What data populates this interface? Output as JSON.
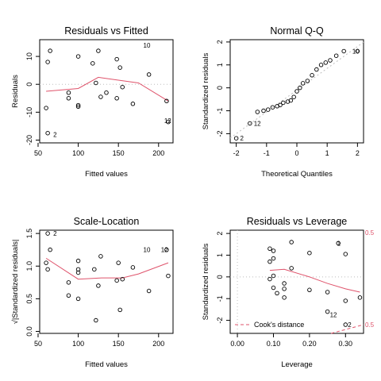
{
  "chart_data": [
    {
      "type": "scatter",
      "title": "Residuals vs Fitted",
      "xlabel": "Fitted values",
      "ylabel": "Residuals",
      "xlim": [
        52,
        218
      ],
      "ylim": [
        -21,
        16
      ],
      "xticks": [
        "50",
        "100",
        "150",
        "200"
      ],
      "xtick_values": [
        50,
        100,
        150,
        200
      ],
      "yticks": [
        "-20",
        "-10",
        "0",
        "10"
      ],
      "ytick_values": [
        -20,
        -10,
        0,
        10
      ],
      "reference_line": 0,
      "points": [
        [
          60,
          -8.5
        ],
        [
          62,
          8
        ],
        [
          65,
          12
        ],
        [
          62,
          -17.5
        ],
        [
          88,
          -3
        ],
        [
          88,
          -5
        ],
        [
          100,
          -7.5
        ],
        [
          100,
          -8
        ],
        [
          100,
          10
        ],
        [
          118,
          7.5
        ],
        [
          122,
          0.5
        ],
        [
          125,
          12
        ],
        [
          128,
          -4.5
        ],
        [
          135,
          -3
        ],
        [
          148,
          9
        ],
        [
          148,
          -5
        ],
        [
          152,
          6
        ],
        [
          155,
          -1
        ],
        [
          168,
          -7
        ],
        [
          188,
          3.5
        ],
        [
          210,
          -6
        ],
        [
          212,
          -13.5
        ]
      ],
      "smooth": [
        [
          60,
          -2.5
        ],
        [
          100,
          -1.5
        ],
        [
          125,
          2.5
        ],
        [
          150,
          1.5
        ],
        [
          175,
          0.5
        ],
        [
          212,
          -6
        ]
      ],
      "labels": [
        {
          "text": "10",
          "x": 178,
          "y": 14
        },
        {
          "text": "12",
          "x": 204,
          "y": -13
        },
        {
          "text": "2",
          "x": 66,
          "y": -18
        }
      ]
    },
    {
      "type": "scatter",
      "title": "Normal Q-Q",
      "xlabel": "Theoretical Quantiles",
      "ylabel": "Standardized residuals",
      "xlim": [
        -2.2,
        2.2
      ],
      "ylim": [
        -2.4,
        2.1
      ],
      "xticks": [
        "-2",
        "-1",
        "0",
        "1",
        "2"
      ],
      "xtick_values": [
        -2,
        -1,
        0,
        1,
        2
      ],
      "yticks": [
        "-2",
        "-1",
        "0",
        "1",
        "2"
      ],
      "ytick_values": [
        -2,
        -1,
        0,
        1,
        2
      ],
      "reference_line": {
        "slope": 0.95,
        "intercept": -0.1
      },
      "points": [
        [
          -2.0,
          -2.2
        ],
        [
          -1.55,
          -1.55
        ],
        [
          -1.3,
          -1.05
        ],
        [
          -1.1,
          -1.0
        ],
        [
          -0.95,
          -0.95
        ],
        [
          -0.8,
          -0.85
        ],
        [
          -0.65,
          -0.8
        ],
        [
          -0.55,
          -0.75
        ],
        [
          -0.45,
          -0.65
        ],
        [
          -0.3,
          -0.6
        ],
        [
          -0.2,
          -0.55
        ],
        [
          -0.1,
          -0.4
        ],
        [
          0.0,
          -0.15
        ],
        [
          0.1,
          0.0
        ],
        [
          0.2,
          0.2
        ],
        [
          0.35,
          0.3
        ],
        [
          0.5,
          0.55
        ],
        [
          0.65,
          0.8
        ],
        [
          0.8,
          1.0
        ],
        [
          0.95,
          1.1
        ],
        [
          1.1,
          1.2
        ],
        [
          1.3,
          1.4
        ],
        [
          1.55,
          1.6
        ],
        [
          2.0,
          1.6
        ]
      ],
      "labels": [
        {
          "text": "2",
          "x": -1.95,
          "y": -2.2
        },
        {
          "text": "12",
          "x": -1.5,
          "y": -1.55
        },
        {
          "text": "10",
          "x": 1.75,
          "y": 1.6
        }
      ]
    },
    {
      "type": "scatter",
      "title": "Scale-Location",
      "xlabel": "Fitted values",
      "ylabel": "√|Standardized residuals|",
      "xlim": [
        52,
        218
      ],
      "ylim": [
        -0.03,
        1.55
      ],
      "xticks": [
        "50",
        "100",
        "150",
        "200"
      ],
      "xtick_values": [
        50,
        100,
        150,
        200
      ],
      "yticks": [
        "0.0",
        "0.5",
        "1.0",
        "1.5"
      ],
      "ytick_values": [
        0.0,
        0.5,
        1.0,
        1.5
      ],
      "points": [
        [
          62,
          1.5
        ],
        [
          60,
          1.05
        ],
        [
          65,
          1.25
        ],
        [
          62,
          0.95
        ],
        [
          88,
          0.75
        ],
        [
          88,
          0.55
        ],
        [
          100,
          1.08
        ],
        [
          100,
          0.95
        ],
        [
          100,
          0.9
        ],
        [
          100,
          0.5
        ],
        [
          120,
          0.95
        ],
        [
          122,
          0.17
        ],
        [
          125,
          0.7
        ],
        [
          128,
          1.15
        ],
        [
          148,
          0.78
        ],
        [
          150,
          1.05
        ],
        [
          152,
          0.33
        ],
        [
          155,
          0.8
        ],
        [
          168,
          0.98
        ],
        [
          188,
          0.62
        ],
        [
          210,
          1.25
        ],
        [
          212,
          0.85
        ]
      ],
      "smooth": [
        [
          60,
          1.12
        ],
        [
          100,
          0.8
        ],
        [
          130,
          0.82
        ],
        [
          155,
          0.82
        ],
        [
          175,
          0.88
        ],
        [
          212,
          1.05
        ]
      ],
      "labels": [
        {
          "text": "2",
          "x": 66,
          "y": 1.5
        },
        {
          "text": "10",
          "x": 178,
          "y": 1.25
        },
        {
          "text": "12",
          "x": 200,
          "y": 1.25
        }
      ]
    },
    {
      "type": "scatter",
      "title": "Residuals vs Leverage",
      "xlabel": "Leverage",
      "ylabel": "Standardized residuals",
      "xlim": [
        -0.02,
        0.35
      ],
      "ylim": [
        -2.6,
        2.15
      ],
      "xticks": [
        "0.00",
        "0.10",
        "0.20",
        "0.30"
      ],
      "xtick_values": [
        0.0,
        0.1,
        0.2,
        0.3
      ],
      "yticks": [
        "-2",
        "-1",
        "0",
        "1",
        "2"
      ],
      "ytick_values": [
        -2,
        -1,
        0,
        1,
        2
      ],
      "reference_line": 0,
      "points": [
        [
          0.09,
          1.3
        ],
        [
          0.1,
          1.2
        ],
        [
          0.09,
          0.7
        ],
        [
          0.1,
          0.85
        ],
        [
          0.1,
          0.05
        ],
        [
          0.09,
          -0.1
        ],
        [
          0.1,
          -0.5
        ],
        [
          0.11,
          -0.75
        ],
        [
          0.13,
          -0.3
        ],
        [
          0.13,
          -0.55
        ],
        [
          0.13,
          -0.95
        ],
        [
          0.15,
          1.6
        ],
        [
          0.15,
          0.4
        ],
        [
          0.2,
          1.1
        ],
        [
          0.2,
          -0.6
        ],
        [
          0.25,
          -0.7
        ],
        [
          0.25,
          -1.6
        ],
        [
          0.28,
          1.55
        ],
        [
          0.3,
          1.05
        ],
        [
          0.3,
          -2.2
        ],
        [
          0.3,
          -1.1
        ],
        [
          0.34,
          -0.95
        ]
      ],
      "smooth": [
        [
          0.09,
          0.3
        ],
        [
          0.13,
          0.35
        ],
        [
          0.2,
          0.0
        ],
        [
          0.25,
          -0.3
        ],
        [
          0.3,
          -0.55
        ],
        [
          0.34,
          -0.7
        ]
      ],
      "cooks": [
        [
          0.26,
          -2.6
        ],
        [
          0.35,
          -2.2
        ]
      ],
      "cooks_label": "Cook's distance",
      "legend_placement": "bottom-left",
      "cooks_levels": [
        "0.5",
        "0.5"
      ],
      "labels": [
        {
          "text": "1",
          "x": 0.27,
          "y": 1.55
        },
        {
          "text": "12",
          "x": 0.25,
          "y": -1.75
        },
        {
          "text": "2",
          "x": 0.3,
          "y": -2.2
        }
      ]
    }
  ]
}
